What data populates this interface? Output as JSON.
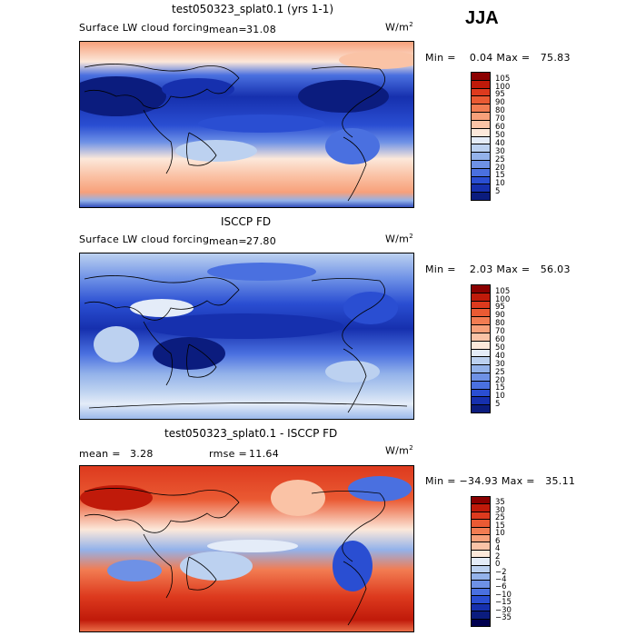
{
  "season": "JJA",
  "units_base": "W/m",
  "units_exp": "2",
  "panels": [
    {
      "title": "test050323_splat0.1 (yrs 1-1)",
      "field": "Surface LW cloud forcing",
      "mean_label": "mean=",
      "mean_value": "31.08",
      "minmax": "Min =    0.04 Max =   75.83",
      "levels": [
        "105",
        "100",
        "95",
        "90",
        "80",
        "70",
        "60",
        "50",
        "40",
        "30",
        "25",
        "20",
        "15",
        "10",
        "5"
      ]
    },
    {
      "title": "ISCCP FD",
      "field": "Surface LW cloud forcing",
      "mean_label": "mean=",
      "mean_value": "27.80",
      "minmax": "Min =    2.03 Max =   56.03",
      "levels": [
        "105",
        "100",
        "95",
        "90",
        "80",
        "70",
        "60",
        "50",
        "40",
        "30",
        "25",
        "20",
        "15",
        "10",
        "5"
      ]
    },
    {
      "title": "test050323_splat0.1 - ISCCP FD",
      "mean_label": "mean =",
      "mean_value": "3.28",
      "rmse_label": "rmse =",
      "rmse_value": "11.64",
      "minmax": "Min = −34.93 Max =   35.11",
      "levels": [
        "35",
        "30",
        "25",
        "15",
        "10",
        "6",
        "4",
        "2",
        "0",
        "−2",
        "−4",
        "−6",
        "−10",
        "−15",
        "−30",
        "−35"
      ]
    }
  ],
  "colors": {
    "abs_scale": [
      "#8b0000",
      "#c01a0a",
      "#dd3a1e",
      "#ea5a33",
      "#f27c52",
      "#f7a07a",
      "#fac3a6",
      "#fce8da",
      "#e4ecf8",
      "#bcd1f0",
      "#93b2ea",
      "#6e91e6",
      "#4a70e0",
      "#2a4ed2",
      "#1630ae",
      "#0b1c7e"
    ],
    "diff_scale": [
      "#8b0000",
      "#c01a0a",
      "#dd3a1e",
      "#ea5a33",
      "#f27c52",
      "#f7a07a",
      "#fac3a6",
      "#fce8da",
      "#e4ecf8",
      "#bcd1f0",
      "#93b2ea",
      "#6e91e6",
      "#4a70e0",
      "#2a4ed2",
      "#1630ae",
      "#0b1c7e"
    ]
  }
}
